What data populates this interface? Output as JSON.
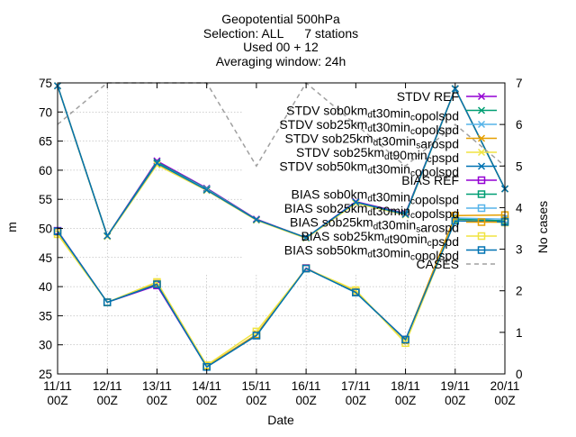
{
  "chart_data": {
    "type": "line",
    "title_lines": [
      "Geopotential 500hPa",
      "Selection: ALL      7 stations",
      "Used 00 + 12",
      "Averaging window: 24h"
    ],
    "xlabel": "Date",
    "ylabel": "m",
    "y2label": "No cases",
    "x_ticks": [
      {
        "top": "11/11",
        "bottom": "00Z"
      },
      {
        "top": "12/11",
        "bottom": "00Z"
      },
      {
        "top": "13/11",
        "bottom": "00Z"
      },
      {
        "top": "14/11",
        "bottom": "00Z"
      },
      {
        "top": "15/11",
        "bottom": "00Z"
      },
      {
        "top": "16/11",
        "bottom": "00Z"
      },
      {
        "top": "17/11",
        "bottom": "00Z"
      },
      {
        "top": "18/11",
        "bottom": "00Z"
      },
      {
        "top": "19/11",
        "bottom": "00Z"
      },
      {
        "top": "20/11",
        "bottom": "00Z"
      }
    ],
    "ylim": [
      25,
      75
    ],
    "y_ticks": [
      25,
      30,
      35,
      40,
      45,
      50,
      55,
      60,
      65,
      70,
      75
    ],
    "y2lim": [
      0,
      7
    ],
    "y2_ticks": [
      0,
      1,
      2,
      3,
      4,
      5,
      6,
      7
    ],
    "grid": true,
    "legend_position": "top-right",
    "series": [
      {
        "name": "STDV REF",
        "label_parts": [
          [
            "STDV REF",
            ""
          ]
        ],
        "color": "#9400d3",
        "marker": "x",
        "axis": "y1",
        "values": [
          74.5,
          48.7,
          61.6,
          56.9,
          51.6,
          48.4,
          54.6,
          52.6,
          74.0,
          56.8
        ]
      },
      {
        "name": "STDV sob0km_d t30min_c opolspd",
        "label_parts": [
          [
            "STDV sob0km",
            ""
          ],
          [
            "d",
            "sub"
          ],
          [
            "t30min",
            ""
          ],
          [
            "c",
            "sub"
          ],
          [
            "opolspd",
            ""
          ]
        ],
        "color": "#009e73",
        "marker": "x",
        "axis": "y1",
        "values": [
          74.5,
          48.7,
          61.4,
          56.8,
          51.5,
          48.4,
          54.5,
          52.5,
          74.0,
          56.8
        ]
      },
      {
        "name": "STDV sob25km_d t30min_c opolspd",
        "label_parts": [
          [
            "STDV sob25km",
            ""
          ],
          [
            "d",
            "sub"
          ],
          [
            "t30min",
            ""
          ],
          [
            "c",
            "sub"
          ],
          [
            "opolspd",
            ""
          ]
        ],
        "color": "#56b4e9",
        "marker": "x",
        "axis": "y1",
        "values": [
          74.5,
          48.7,
          61.2,
          56.7,
          51.5,
          48.4,
          54.4,
          52.4,
          74.0,
          56.8
        ]
      },
      {
        "name": "STDV sob25km_d t30min_s arospd",
        "label_parts": [
          [
            "STDV sob25km",
            ""
          ],
          [
            "d",
            "sub"
          ],
          [
            "t30min",
            ""
          ],
          [
            "s",
            "sub"
          ],
          [
            "arospd",
            ""
          ]
        ],
        "color": "#e69f00",
        "marker": "x",
        "axis": "y1",
        "values": [
          74.5,
          48.7,
          61.1,
          56.6,
          51.5,
          48.4,
          54.4,
          52.4,
          74.0,
          56.8
        ]
      },
      {
        "name": "STDV sob25km_d t90min_c pspd",
        "label_parts": [
          [
            "STDV sob25km",
            ""
          ],
          [
            "d",
            "sub"
          ],
          [
            "t90min",
            ""
          ],
          [
            "c",
            "sub"
          ],
          [
            "pspd",
            ""
          ]
        ],
        "color": "#f0e442",
        "marker": "x",
        "axis": "y1",
        "values": [
          74.5,
          48.6,
          60.9,
          56.5,
          51.4,
          48.3,
          54.3,
          52.3,
          74.0,
          56.8
        ]
      },
      {
        "name": "STDV sob50km_d t30min_c opolspd",
        "label_parts": [
          [
            "STDV sob50km",
            ""
          ],
          [
            "d",
            "sub"
          ],
          [
            "t30min",
            ""
          ],
          [
            "c",
            "sub"
          ],
          [
            "opolspd",
            ""
          ]
        ],
        "color": "#0072b2",
        "marker": "x",
        "axis": "y1",
        "values": [
          74.5,
          48.7,
          61.2,
          56.6,
          51.5,
          48.4,
          54.5,
          52.4,
          74.0,
          56.8
        ]
      },
      {
        "name": "BIAS REF",
        "label_parts": [
          [
            "BIAS REF",
            ""
          ]
        ],
        "color": "#9400d3",
        "marker": "square",
        "axis": "y1",
        "values": [
          49.6,
          37.3,
          40.2,
          26.2,
          31.6,
          43.2,
          39.0,
          30.9,
          51.6,
          51.3
        ]
      },
      {
        "name": "BIAS sob0km_d t30min_c opolspd",
        "label_parts": [
          [
            "BIAS sob0km",
            ""
          ],
          [
            "d",
            "sub"
          ],
          [
            "t30min",
            ""
          ],
          [
            "c",
            "sub"
          ],
          [
            "opolspd",
            ""
          ]
        ],
        "color": "#009e73",
        "marker": "square",
        "axis": "y1",
        "values": [
          49.5,
          37.3,
          40.4,
          26.2,
          31.6,
          43.1,
          39.0,
          30.8,
          51.6,
          51.3
        ]
      },
      {
        "name": "BIAS sob25km_d t30min_c opolspd",
        "label_parts": [
          [
            "BIAS sob25km",
            ""
          ],
          [
            "d",
            "sub"
          ],
          [
            "t30min",
            ""
          ],
          [
            "c",
            "sub"
          ],
          [
            "opolspd",
            ""
          ]
        ],
        "color": "#56b4e9",
        "marker": "square",
        "axis": "y1",
        "values": [
          49.5,
          37.3,
          40.5,
          26.3,
          31.7,
          43.1,
          39.0,
          30.8,
          51.8,
          51.6
        ]
      },
      {
        "name": "BIAS sob25km_d t30min_s arospd",
        "label_parts": [
          [
            "BIAS sob25km",
            ""
          ],
          [
            "d",
            "sub"
          ],
          [
            "t30min",
            ""
          ],
          [
            "s",
            "sub"
          ],
          [
            "arospd",
            ""
          ]
        ],
        "color": "#e69f00",
        "marker": "square",
        "axis": "y1",
        "values": [
          49.4,
          37.3,
          40.5,
          26.3,
          31.8,
          43.1,
          39.1,
          30.8,
          52.2,
          52.3
        ]
      },
      {
        "name": "BIAS sob25km_d t90min_c pspd",
        "label_parts": [
          [
            "BIAS sob25km",
            ""
          ],
          [
            "d",
            "sub"
          ],
          [
            "t90min",
            ""
          ],
          [
            "c",
            "sub"
          ],
          [
            "pspd",
            ""
          ]
        ],
        "color": "#f0e442",
        "marker": "square",
        "axis": "y1",
        "values": [
          49.0,
          37.3,
          40.8,
          26.5,
          32.3,
          43.1,
          39.4,
          30.3,
          51.4,
          51.0
        ]
      },
      {
        "name": "BIAS sob50km_d t30min_c opolspd",
        "label_parts": [
          [
            "BIAS sob50km",
            ""
          ],
          [
            "d",
            "sub"
          ],
          [
            "t30min",
            ""
          ],
          [
            "c",
            "sub"
          ],
          [
            "opolspd",
            ""
          ]
        ],
        "color": "#0072b2",
        "marker": "square",
        "axis": "y1",
        "values": [
          49.5,
          37.3,
          40.4,
          26.2,
          31.6,
          43.1,
          39.0,
          30.9,
          51.3,
          51.1
        ]
      },
      {
        "name": "CASES",
        "label_parts": [
          [
            "CASES",
            ""
          ]
        ],
        "color": "#a0a0a0",
        "marker": "none",
        "dashed": true,
        "axis": "y2",
        "values": [
          6.0,
          7.0,
          7.0,
          7.0,
          5.0,
          7.0,
          6.0,
          5.0,
          6.0,
          5.0
        ]
      }
    ]
  }
}
